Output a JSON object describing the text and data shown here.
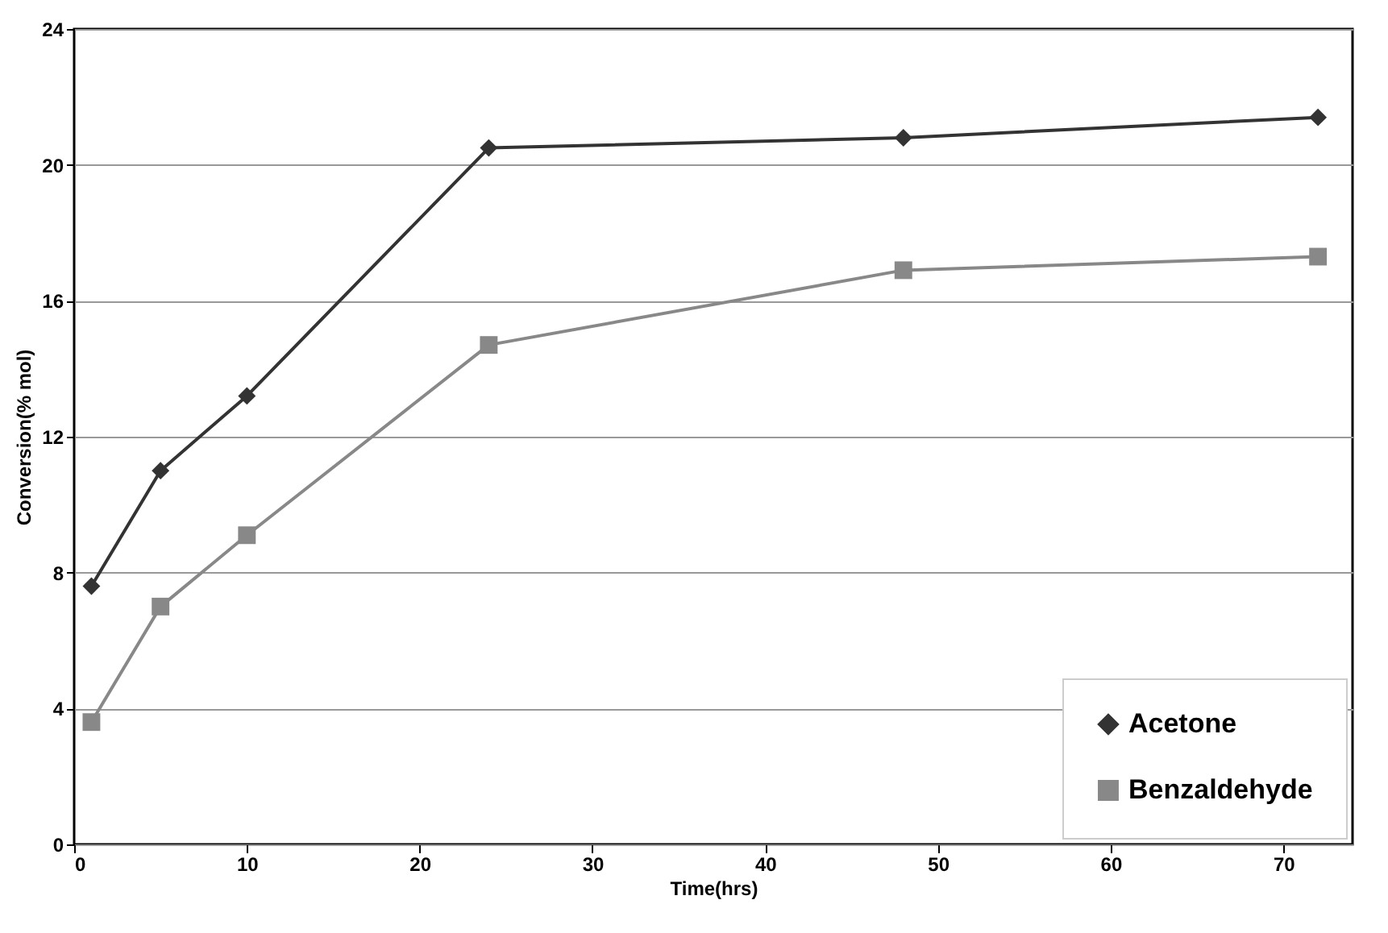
{
  "chart_data": {
    "type": "line",
    "xlabel": "Time(hrs)",
    "ylabel": "Conversion(% mol)",
    "xlim": [
      0,
      74
    ],
    "xticks": [
      0,
      10,
      20,
      30,
      40,
      50,
      60,
      70
    ],
    "ylim": [
      0,
      24
    ],
    "yticks": [
      0,
      4,
      8,
      12,
      16,
      20,
      24
    ],
    "grid": "y",
    "legend": "bottom right",
    "series": [
      {
        "name": "Acetone",
        "color": "#333333",
        "marker": "diamond",
        "x": [
          1,
          5,
          10,
          24,
          48,
          72
        ],
        "values": [
          7.6,
          11.0,
          13.2,
          20.5,
          20.8,
          21.4
        ]
      },
      {
        "name": "Benzaldehyde",
        "color": "#888888",
        "marker": "square",
        "x": [
          1,
          5,
          10,
          24,
          48,
          72
        ],
        "values": [
          3.6,
          7.0,
          9.1,
          14.7,
          16.9,
          17.3
        ]
      }
    ]
  }
}
